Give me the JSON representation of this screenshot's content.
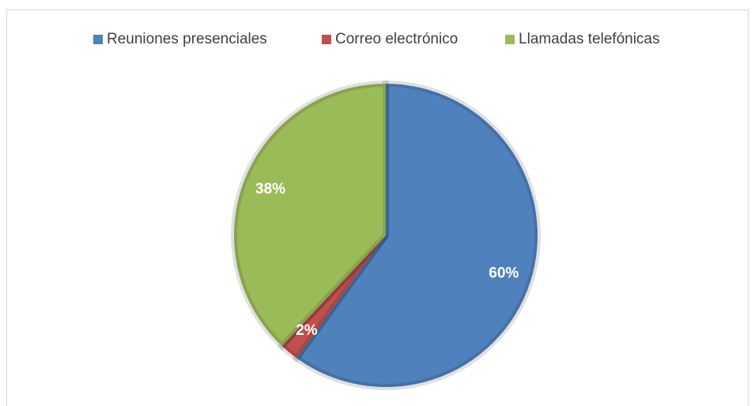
{
  "chart_data": {
    "type": "pie",
    "categories": [
      "Reuniones presenciales",
      "Correo electrónico",
      "Llamadas telefónicas"
    ],
    "values": [
      60,
      2,
      38
    ],
    "value_labels": [
      "60%",
      "2%",
      "38%"
    ],
    "colors": [
      "#4f81bd",
      "#c0504d",
      "#9bbb59"
    ],
    "legend": "top"
  }
}
